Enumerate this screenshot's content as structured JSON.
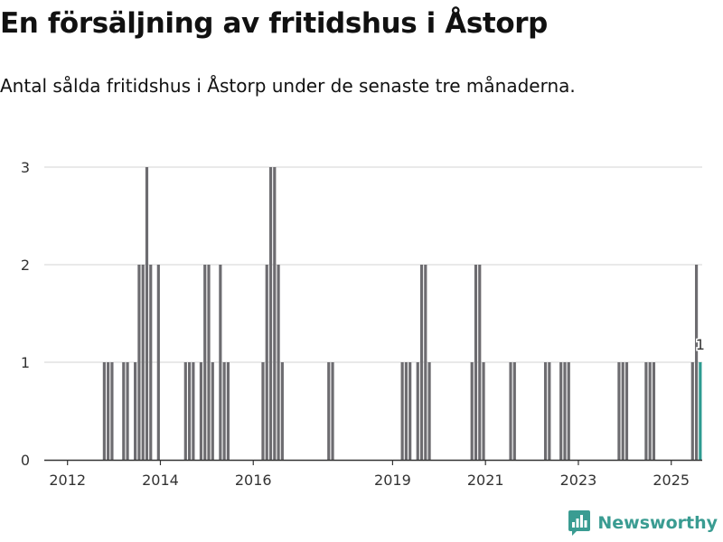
{
  "title": "En försäljning av fritidshus i Åstorp",
  "subtitle": "Antal sålda fritidshus i Åstorp under de senaste tre månaderna.",
  "brand": {
    "name": "Newsworthy",
    "icon": "newsworthy-logo-icon",
    "color": "#3a9c92"
  },
  "colors": {
    "bar": "#6d6c70",
    "highlight": "#2e9b91",
    "grid": "#dcdcdc",
    "axis": "#333333"
  },
  "chart_data": {
    "type": "bar",
    "title": "En försäljning av fritidshus i Åstorp",
    "xlabel": "",
    "ylabel": "",
    "ylim": [
      0,
      3
    ],
    "yticks": [
      0,
      1,
      2,
      3
    ],
    "xticks": [
      "2012",
      "2014",
      "2016",
      "2019",
      "2021",
      "2023",
      "2025"
    ],
    "unit": "month",
    "start": "2011-07",
    "end": "2025-08",
    "highlight": {
      "month": "2025-08",
      "value": 1,
      "label": "1"
    },
    "series": [
      {
        "name": "Sålda fritidshus",
        "values": [
          [
            "2012-10",
            1
          ],
          [
            "2012-11",
            1
          ],
          [
            "2012-12",
            1
          ],
          [
            "2013-03",
            1
          ],
          [
            "2013-04",
            1
          ],
          [
            "2013-06",
            1
          ],
          [
            "2013-07",
            2
          ],
          [
            "2013-08",
            2
          ],
          [
            "2013-09",
            3
          ],
          [
            "2013-10",
            2
          ],
          [
            "2013-12",
            2
          ],
          [
            "2014-07",
            1
          ],
          [
            "2014-08",
            1
          ],
          [
            "2014-09",
            1
          ],
          [
            "2014-11",
            1
          ],
          [
            "2014-12",
            2
          ],
          [
            "2015-01",
            2
          ],
          [
            "2015-02",
            1
          ],
          [
            "2015-04",
            2
          ],
          [
            "2015-05",
            1
          ],
          [
            "2015-06",
            1
          ],
          [
            "2016-03",
            1
          ],
          [
            "2016-04",
            2
          ],
          [
            "2016-05",
            3
          ],
          [
            "2016-06",
            3
          ],
          [
            "2016-07",
            2
          ],
          [
            "2016-08",
            1
          ],
          [
            "2017-08",
            1
          ],
          [
            "2017-09",
            1
          ],
          [
            "2019-03",
            1
          ],
          [
            "2019-04",
            1
          ],
          [
            "2019-05",
            1
          ],
          [
            "2019-07",
            1
          ],
          [
            "2019-08",
            2
          ],
          [
            "2019-09",
            2
          ],
          [
            "2019-10",
            1
          ],
          [
            "2020-09",
            1
          ],
          [
            "2020-10",
            2
          ],
          [
            "2020-11",
            2
          ],
          [
            "2020-12",
            1
          ],
          [
            "2021-07",
            1
          ],
          [
            "2021-08",
            1
          ],
          [
            "2022-04",
            1
          ],
          [
            "2022-05",
            1
          ],
          [
            "2022-08",
            1
          ],
          [
            "2022-09",
            1
          ],
          [
            "2022-10",
            1
          ],
          [
            "2023-11",
            1
          ],
          [
            "2023-12",
            1
          ],
          [
            "2024-01",
            1
          ],
          [
            "2024-06",
            1
          ],
          [
            "2024-07",
            1
          ],
          [
            "2024-08",
            1
          ],
          [
            "2025-06",
            1
          ],
          [
            "2025-07",
            2
          ],
          [
            "2025-08",
            1
          ]
        ]
      }
    ]
  }
}
